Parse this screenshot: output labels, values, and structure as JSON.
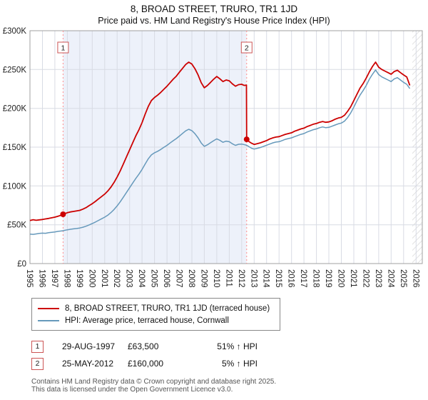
{
  "header": {
    "title": "8, BROAD STREET, TRURO, TR1 1JD",
    "subtitle": "Price paid vs. HM Land Registry's House Price Index (HPI)"
  },
  "colors": {
    "price_line": "#cc0000",
    "hpi_line": "#6699bb",
    "dotted_line": "#ff8c8c",
    "grid": "#d8dbe4",
    "plot_border": "#a0a0a0",
    "shade": "#edf1fa",
    "marker_box_border": "#cc5555",
    "marker_text": "#222222",
    "sale_dot": "#cc0000"
  },
  "chart_data": {
    "type": "line",
    "title": "8, BROAD STREET, TRURO, TR1 1JD — Price paid vs. HPI",
    "xlabel": "",
    "ylabel": "",
    "xlim": [
      1995,
      2026.5
    ],
    "ylim": [
      0,
      300000
    ],
    "grid": true,
    "legend_position": "below",
    "x_ticks": [
      1995,
      1996,
      1997,
      1998,
      1999,
      2000,
      2001,
      2002,
      2003,
      2004,
      2005,
      2006,
      2007,
      2008,
      2009,
      2010,
      2011,
      2012,
      2013,
      2014,
      2015,
      2016,
      2017,
      2018,
      2019,
      2020,
      2021,
      2022,
      2023,
      2024,
      2025,
      2026
    ],
    "y_tick_step": 50000,
    "y_tick_labels": [
      "£0",
      "£50K",
      "£100K",
      "£150K",
      "£200K",
      "£250K",
      "£300K"
    ],
    "future_band_from": 2025.7,
    "sales": [
      {
        "num": "1",
        "x": 1997.66,
        "price": 63500
      },
      {
        "num": "2",
        "x": 2012.4,
        "price": 160000
      }
    ],
    "series": [
      {
        "name": "8, BROAD STREET, TRURO, TR1 1JD (terraced house)",
        "color": "#cc0000",
        "width": 1.8,
        "points": [
          [
            1995,
            55500
          ],
          [
            1995.25,
            56500
          ],
          [
            1995.5,
            55800
          ],
          [
            1995.75,
            56300
          ],
          [
            1996,
            56800
          ],
          [
            1996.25,
            57500
          ],
          [
            1996.5,
            58200
          ],
          [
            1996.75,
            59000
          ],
          [
            1997,
            59800
          ],
          [
            1997.25,
            61000
          ],
          [
            1997.5,
            62300
          ],
          [
            1997.66,
            63500
          ],
          [
            1998,
            65500
          ],
          [
            1998.25,
            66500
          ],
          [
            1998.5,
            67200
          ],
          [
            1998.75,
            67900
          ],
          [
            1999,
            68600
          ],
          [
            1999.25,
            70100
          ],
          [
            1999.5,
            72100
          ],
          [
            1999.75,
            74600
          ],
          [
            2000,
            77100
          ],
          [
            2000.25,
            80100
          ],
          [
            2000.5,
            83200
          ],
          [
            2000.75,
            86300
          ],
          [
            2001,
            89500
          ],
          [
            2001.25,
            93500
          ],
          [
            2001.5,
            98500
          ],
          [
            2001.75,
            104500
          ],
          [
            2002,
            111500
          ],
          [
            2002.25,
            119500
          ],
          [
            2002.5,
            128500
          ],
          [
            2002.75,
            137500
          ],
          [
            2003,
            146500
          ],
          [
            2003.25,
            155500
          ],
          [
            2003.5,
            164500
          ],
          [
            2003.75,
            172500
          ],
          [
            2004,
            181500
          ],
          [
            2004.25,
            192500
          ],
          [
            2004.5,
            202500
          ],
          [
            2004.75,
            210000
          ],
          [
            2005,
            214000
          ],
          [
            2005.25,
            217000
          ],
          [
            2005.5,
            220500
          ],
          [
            2005.75,
            224500
          ],
          [
            2006,
            228500
          ],
          [
            2006.25,
            233000
          ],
          [
            2006.5,
            237500
          ],
          [
            2006.75,
            241500
          ],
          [
            2007,
            246500
          ],
          [
            2007.25,
            251500
          ],
          [
            2007.5,
            256500
          ],
          [
            2007.75,
            259500
          ],
          [
            2008,
            257000
          ],
          [
            2008.25,
            251000
          ],
          [
            2008.5,
            243000
          ],
          [
            2008.75,
            233000
          ],
          [
            2009,
            226500
          ],
          [
            2009.25,
            229500
          ],
          [
            2009.5,
            233500
          ],
          [
            2009.75,
            237500
          ],
          [
            2010,
            241000
          ],
          [
            2010.25,
            238000
          ],
          [
            2010.5,
            234500
          ],
          [
            2010.75,
            236500
          ],
          [
            2011,
            235500
          ],
          [
            2011.25,
            231500
          ],
          [
            2011.5,
            228500
          ],
          [
            2011.75,
            230500
          ],
          [
            2012,
            231000
          ],
          [
            2012.2,
            229500
          ],
          [
            2012.38,
            230000
          ],
          [
            2012.4,
            160000
          ],
          [
            2012.6,
            157000
          ],
          [
            2012.8,
            155000
          ],
          [
            2013,
            153500
          ],
          [
            2013.25,
            154500
          ],
          [
            2013.5,
            155500
          ],
          [
            2013.75,
            157000
          ],
          [
            2014,
            158500
          ],
          [
            2014.25,
            160500
          ],
          [
            2014.5,
            162000
          ],
          [
            2014.75,
            163000
          ],
          [
            2015,
            163500
          ],
          [
            2015.25,
            165000
          ],
          [
            2015.5,
            166500
          ],
          [
            2015.75,
            167500
          ],
          [
            2016,
            168500
          ],
          [
            2016.25,
            170500
          ],
          [
            2016.5,
            172000
          ],
          [
            2016.75,
            173500
          ],
          [
            2017,
            174500
          ],
          [
            2017.25,
            176500
          ],
          [
            2017.5,
            178000
          ],
          [
            2017.75,
            179500
          ],
          [
            2018,
            180500
          ],
          [
            2018.25,
            182000
          ],
          [
            2018.5,
            183000
          ],
          [
            2018.75,
            182000
          ],
          [
            2019,
            182500
          ],
          [
            2019.25,
            184000
          ],
          [
            2019.5,
            186000
          ],
          [
            2019.75,
            187500
          ],
          [
            2020,
            188500
          ],
          [
            2020.25,
            191000
          ],
          [
            2020.5,
            196000
          ],
          [
            2020.75,
            202000
          ],
          [
            2021,
            210000
          ],
          [
            2021.25,
            218000
          ],
          [
            2021.5,
            226000
          ],
          [
            2021.75,
            232000
          ],
          [
            2022,
            239000
          ],
          [
            2022.25,
            247000
          ],
          [
            2022.5,
            254000
          ],
          [
            2022.75,
            259500
          ],
          [
            2023,
            253000
          ],
          [
            2023.25,
            250000
          ],
          [
            2023.5,
            248000
          ],
          [
            2023.75,
            246000
          ],
          [
            2024,
            244000
          ],
          [
            2024.25,
            247500
          ],
          [
            2024.5,
            249000
          ],
          [
            2024.75,
            246000
          ],
          [
            2025,
            243000
          ],
          [
            2025.25,
            240500
          ],
          [
            2025.5,
            229500
          ]
        ]
      },
      {
        "name": "HPI: Average price, terraced house, Cornwall",
        "color": "#6699bb",
        "width": 1.5,
        "points": [
          [
            1995,
            38000
          ],
          [
            1995.25,
            37600
          ],
          [
            1995.5,
            38200
          ],
          [
            1995.75,
            38800
          ],
          [
            1996,
            39200
          ],
          [
            1996.25,
            39000
          ],
          [
            1996.5,
            39800
          ],
          [
            1996.75,
            40300
          ],
          [
            1997,
            40800
          ],
          [
            1997.25,
            41500
          ],
          [
            1997.5,
            42000
          ],
          [
            1997.66,
            42300
          ],
          [
            1998,
            43500
          ],
          [
            1998.25,
            44200
          ],
          [
            1998.5,
            44700
          ],
          [
            1998.75,
            45200
          ],
          [
            1999,
            45800
          ],
          [
            1999.25,
            46800
          ],
          [
            1999.5,
            48100
          ],
          [
            1999.75,
            49800
          ],
          [
            2000,
            51500
          ],
          [
            2000.25,
            53500
          ],
          [
            2000.5,
            55600
          ],
          [
            2000.75,
            57700
          ],
          [
            2001,
            59800
          ],
          [
            2001.25,
            62300
          ],
          [
            2001.5,
            65700
          ],
          [
            2001.75,
            69700
          ],
          [
            2002,
            74300
          ],
          [
            2002.25,
            79700
          ],
          [
            2002.5,
            85700
          ],
          [
            2002.75,
            91700
          ],
          [
            2003,
            97700
          ],
          [
            2003.25,
            103700
          ],
          [
            2003.5,
            109700
          ],
          [
            2003.75,
            115200
          ],
          [
            2004,
            121200
          ],
          [
            2004.25,
            128300
          ],
          [
            2004.5,
            135000
          ],
          [
            2004.75,
            140000
          ],
          [
            2005,
            142700
          ],
          [
            2005.25,
            144700
          ],
          [
            2005.5,
            147000
          ],
          [
            2005.75,
            149700
          ],
          [
            2006,
            152300
          ],
          [
            2006.25,
            155300
          ],
          [
            2006.5,
            158300
          ],
          [
            2006.75,
            161000
          ],
          [
            2007,
            164300
          ],
          [
            2007.25,
            167700
          ],
          [
            2007.5,
            171000
          ],
          [
            2007.75,
            173000
          ],
          [
            2008,
            171300
          ],
          [
            2008.25,
            167300
          ],
          [
            2008.5,
            162000
          ],
          [
            2008.75,
            155300
          ],
          [
            2009,
            151000
          ],
          [
            2009.25,
            153000
          ],
          [
            2009.5,
            155700
          ],
          [
            2009.75,
            158300
          ],
          [
            2010,
            160700
          ],
          [
            2010.25,
            158700
          ],
          [
            2010.5,
            156300
          ],
          [
            2010.75,
            157700
          ],
          [
            2011,
            157000
          ],
          [
            2011.25,
            154300
          ],
          [
            2011.5,
            152300
          ],
          [
            2011.75,
            153700
          ],
          [
            2012,
            154000
          ],
          [
            2012.25,
            153000
          ],
          [
            2012.4,
            152400
          ],
          [
            2012.6,
            150500
          ],
          [
            2012.8,
            148500
          ],
          [
            2013,
            147500
          ],
          [
            2013.25,
            148500
          ],
          [
            2013.5,
            149500
          ],
          [
            2013.75,
            151000
          ],
          [
            2014,
            152500
          ],
          [
            2014.25,
            154000
          ],
          [
            2014.5,
            155500
          ],
          [
            2014.75,
            156500
          ],
          [
            2015,
            157000
          ],
          [
            2015.25,
            158500
          ],
          [
            2015.5,
            160000
          ],
          [
            2015.75,
            161000
          ],
          [
            2016,
            162000
          ],
          [
            2016.25,
            163500
          ],
          [
            2016.5,
            165000
          ],
          [
            2016.75,
            166500
          ],
          [
            2017,
            167500
          ],
          [
            2017.25,
            169500
          ],
          [
            2017.5,
            171000
          ],
          [
            2017.75,
            172500
          ],
          [
            2018,
            173500
          ],
          [
            2018.25,
            175000
          ],
          [
            2018.5,
            176000
          ],
          [
            2018.75,
            175000
          ],
          [
            2019,
            175500
          ],
          [
            2019.25,
            177000
          ],
          [
            2019.5,
            178500
          ],
          [
            2019.75,
            180000
          ],
          [
            2020,
            181000
          ],
          [
            2020.25,
            183500
          ],
          [
            2020.5,
            188000
          ],
          [
            2020.75,
            194000
          ],
          [
            2021,
            201500
          ],
          [
            2021.25,
            209500
          ],
          [
            2021.5,
            217000
          ],
          [
            2021.75,
            223000
          ],
          [
            2022,
            229500
          ],
          [
            2022.25,
            237500
          ],
          [
            2022.5,
            244000
          ],
          [
            2022.75,
            249500
          ],
          [
            2023,
            243500
          ],
          [
            2023.25,
            240500
          ],
          [
            2023.5,
            238500
          ],
          [
            2023.75,
            236500
          ],
          [
            2024,
            234500
          ],
          [
            2024.25,
            238000
          ],
          [
            2024.5,
            239500
          ],
          [
            2024.75,
            236500
          ],
          [
            2025,
            233500
          ],
          [
            2025.25,
            231000
          ],
          [
            2025.5,
            225500
          ]
        ]
      }
    ]
  },
  "legend": {
    "items": [
      {
        "label": "8, BROAD STREET, TRURO, TR1 1JD (terraced house)",
        "color": "#cc0000"
      },
      {
        "label": "HPI: Average price, terraced house, Cornwall",
        "color": "#6699bb"
      }
    ]
  },
  "transactions": [
    {
      "num": "1",
      "date": "29-AUG-1997",
      "price": "£63,500",
      "hpi": "51% ↑ HPI"
    },
    {
      "num": "2",
      "date": "25-MAY-2012",
      "price": "£160,000",
      "hpi": "5% ↑ HPI"
    }
  ],
  "footer": {
    "line1": "Contains HM Land Registry data © Crown copyright and database right 2025.",
    "line2": "This data is licensed under the Open Government Licence v3.0."
  }
}
